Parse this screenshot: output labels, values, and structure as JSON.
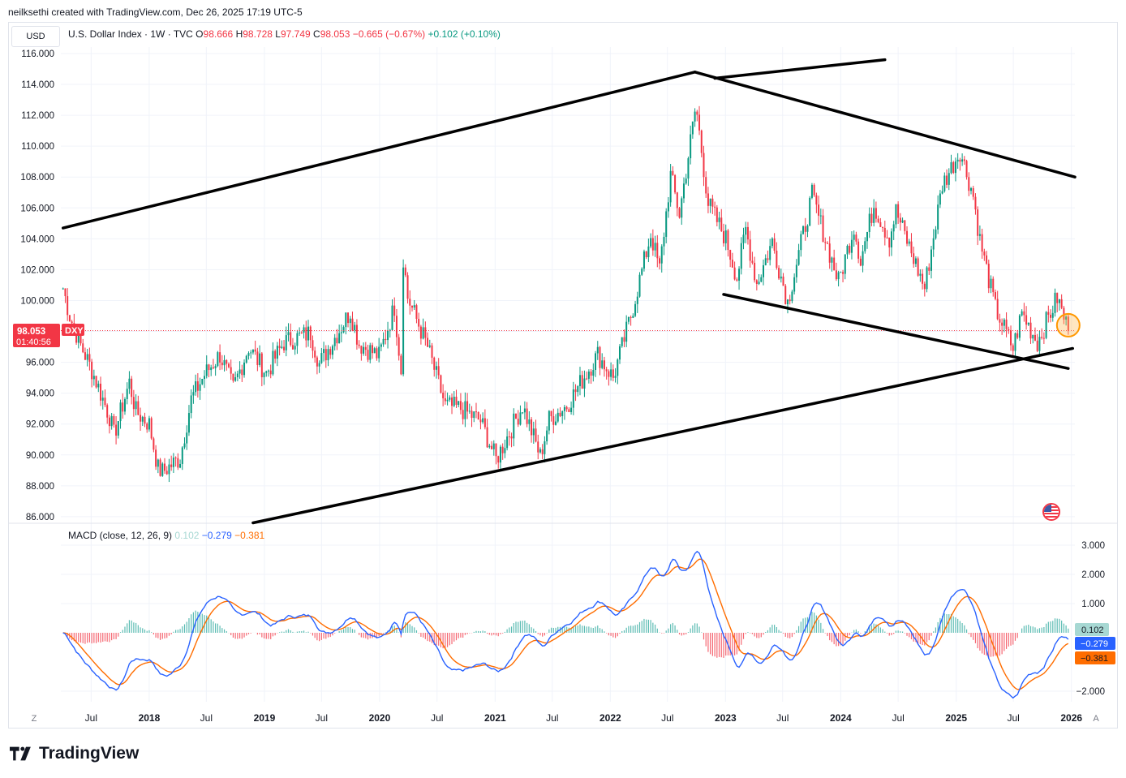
{
  "header": {
    "text": "neilksethi created with TradingView.com, Dec 26, 2025 17:19 UTC-5"
  },
  "toolbar": {
    "currency": "USD"
  },
  "legend": {
    "symbol": "U.S. Dollar Index · 1W · TVC",
    "o_label": "O",
    "o": "98.666",
    "h_label": "H",
    "h": "98.728",
    "l_label": "L",
    "l": "97.749",
    "c_label": "C",
    "c": "98.053",
    "change": "−0.665 (−0.67%)",
    "macd_diff": "+0.102 (+0.10%)"
  },
  "price_tag": {
    "price": "98.053",
    "ticker": "DXY",
    "countdown": "01:40:56"
  },
  "macd_legend": {
    "label": "MACD (close, 12, 26, 9)",
    "hist": "0.102",
    "macd": "−0.279",
    "signal": "−0.381"
  },
  "macd_tags": {
    "hist": "0.102",
    "macd": "−0.279",
    "signal": "−0.381"
  },
  "buttons": {
    "z": "Z",
    "a": "A"
  },
  "logo": {
    "text": "TradingView"
  },
  "colors": {
    "up": "#089981",
    "down": "#f23645",
    "macd": "#2962ff",
    "signal": "#ff6d00",
    "hist": "#26a69a"
  },
  "chart_data": [
    {
      "type": "candlestick",
      "title": "U.S. Dollar Index · 1W · TVC",
      "y_ticks": [
        "116.000",
        "114.000",
        "112.000",
        "110.000",
        "108.000",
        "106.000",
        "104.000",
        "102.000",
        "100.000",
        "98.000",
        "96.000",
        "94.000",
        "92.000",
        "90.000",
        "88.000",
        "86.000"
      ],
      "ylim": [
        86,
        116.5
      ],
      "x_ticks": [
        "Jul",
        "2018",
        "Jul",
        "2019",
        "Jul",
        "2020",
        "Jul",
        "2021",
        "Jul",
        "2022",
        "Jul",
        "2023",
        "Jul",
        "2024",
        "Jul",
        "2025",
        "Jul",
        "2026"
      ],
      "last_price": 98.053,
      "close_anchors": [
        [
          "2017-04-03",
          100.8
        ],
        [
          "2017-04-24",
          99.0
        ],
        [
          "2017-05-29",
          97.1
        ],
        [
          "2017-07-03",
          95.5
        ],
        [
          "2017-08-28",
          92.5
        ],
        [
          "2017-09-11",
          91.3
        ],
        [
          "2017-10-30",
          94.7
        ],
        [
          "2017-11-20",
          92.8
        ],
        [
          "2018-01-01",
          92.0
        ],
        [
          "2018-01-29",
          89.1
        ],
        [
          "2018-02-12",
          88.9
        ],
        [
          "2018-04-09",
          89.8
        ],
        [
          "2018-05-14",
          93.6
        ],
        [
          "2018-06-25",
          95.2
        ],
        [
          "2018-08-13",
          96.5
        ],
        [
          "2018-09-24",
          94.3
        ],
        [
          "2018-11-12",
          97.0
        ],
        [
          "2019-01-07",
          95.3
        ],
        [
          "2019-03-04",
          97.3
        ],
        [
          "2019-05-27",
          97.9
        ],
        [
          "2019-06-24",
          95.9
        ],
        [
          "2019-09-30",
          99.3
        ],
        [
          "2019-10-28",
          97.2
        ],
        [
          "2019-12-30",
          96.4
        ],
        [
          "2020-02-17",
          99.6
        ],
        [
          "2020-03-09",
          95.5
        ],
        [
          "2020-03-16",
          102.8
        ],
        [
          "2020-03-30",
          100.2
        ],
        [
          "2020-06-01",
          97.0
        ],
        [
          "2020-07-27",
          93.2
        ],
        [
          "2020-09-14",
          93.0
        ],
        [
          "2020-11-16",
          92.2
        ],
        [
          "2021-01-04",
          89.7
        ],
        [
          "2021-03-29",
          93.2
        ],
        [
          "2021-05-24",
          89.9
        ],
        [
          "2021-06-21",
          92.3
        ],
        [
          "2021-08-16",
          93.2
        ],
        [
          "2021-11-22",
          96.5
        ],
        [
          "2022-01-10",
          95.0
        ],
        [
          "2022-03-07",
          99.0
        ],
        [
          "2022-05-09",
          104.3
        ],
        [
          "2022-06-06",
          102.0
        ],
        [
          "2022-07-11",
          108.1
        ],
        [
          "2022-08-08",
          105.6
        ],
        [
          "2022-09-26",
          112.2
        ],
        [
          "2022-10-03",
          112.0
        ],
        [
          "2022-11-07",
          106.3
        ],
        [
          "2023-01-02",
          104.0
        ],
        [
          "2023-02-06",
          101.5
        ],
        [
          "2023-03-06",
          104.6
        ],
        [
          "2023-04-10",
          101.1
        ],
        [
          "2023-05-29",
          103.8
        ],
        [
          "2023-07-17",
          99.9
        ],
        [
          "2023-10-02",
          106.8
        ],
        [
          "2023-12-25",
          101.2
        ],
        [
          "2024-02-12",
          104.8
        ],
        [
          "2024-03-04",
          102.6
        ],
        [
          "2024-04-15",
          106.2
        ],
        [
          "2024-06-03",
          104.0
        ],
        [
          "2024-06-24",
          105.8
        ],
        [
          "2024-09-23",
          100.8
        ],
        [
          "2024-11-18",
          107.5
        ],
        [
          "2025-01-13",
          109.7
        ],
        [
          "2025-02-24",
          106.8
        ],
        [
          "2025-03-17",
          103.9
        ],
        [
          "2025-05-05",
          99.5
        ],
        [
          "2025-06-30",
          96.9
        ],
        [
          "2025-07-28",
          99.2
        ],
        [
          "2025-09-15",
          97.3
        ],
        [
          "2025-11-17",
          100.2
        ],
        [
          "2025-12-22",
          98.053
        ]
      ],
      "trendlines": [
        {
          "from": [
            "2017-04-03",
            104.7
          ],
          "to": [
            "2022-09-26",
            114.8
          ]
        },
        {
          "from": [
            "2022-09-26",
            114.8
          ],
          "to": [
            "2026-01-12",
            108.0
          ]
        },
        {
          "from": [
            "2022-12-26",
            100.4
          ],
          "to": [
            "2025-12-22",
            95.6
          ]
        },
        {
          "from": [
            "2018-11-26",
            85.6
          ],
          "to": [
            "2026-01-05",
            96.9
          ]
        },
        {
          "from": [
            "2022-11-28",
            114.4
          ],
          "to": [
            "2024-05-20",
            115.6
          ]
        }
      ],
      "highlight_circle": [
        "2025-12-22",
        98.4
      ]
    },
    {
      "type": "macd",
      "title": "MACD (close, 12, 26, 9)",
      "y_ticks": [
        "3.000",
        "2.000",
        "1.000",
        "-2.000"
      ],
      "ylim": [
        -2.4,
        3.4
      ],
      "last": {
        "histogram": 0.102,
        "macd": -0.279,
        "signal": -0.381
      }
    }
  ]
}
